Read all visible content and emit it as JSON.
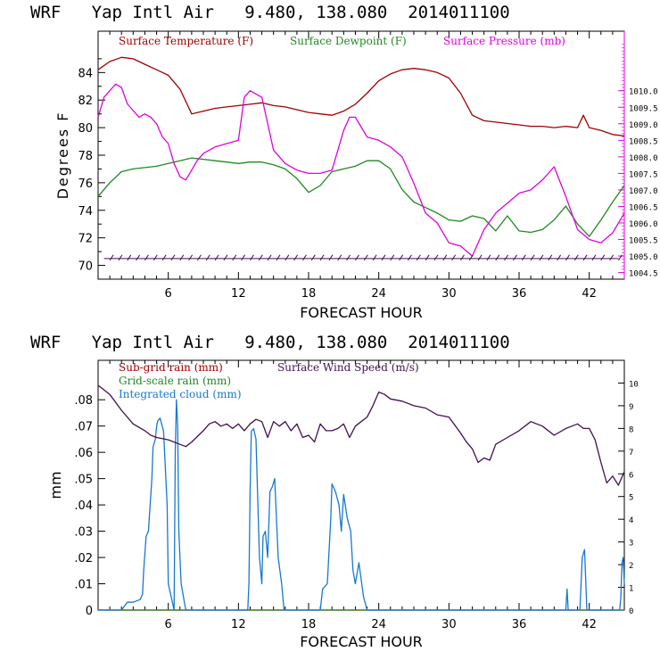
{
  "colors": {
    "temperature": "#a00000",
    "dewpoint": "#208820",
    "pressure": "#e000e0",
    "wind_barb": "#401050",
    "subgrid": "#a00000",
    "gridscale": "#208820",
    "cloud": "#1878d0",
    "windspeed": "#401050"
  },
  "chart_data": [
    {
      "type": "line",
      "title": "WRF   Yap Intl Air   9.480, 138.080  2014011100",
      "xlabel": "FORECAST HOUR",
      "ylabel": "Degrees F",
      "xlim": [
        0,
        45
      ],
      "ylim": [
        69,
        87
      ],
      "xticks": [
        6,
        12,
        18,
        24,
        30,
        36,
        42
      ],
      "yticks": [
        70,
        72,
        74,
        76,
        78,
        80,
        82,
        84
      ],
      "y2lim": [
        1004.3,
        1011.8
      ],
      "y2ticks": [
        "1004.5",
        "1005.0",
        "1005.5",
        "1006.0",
        "1006.5",
        "1007.0",
        "1007.5",
        "1008.0",
        "1008.5",
        "1009.0",
        "1009.5",
        "1010.0"
      ],
      "legend": [
        "Surface Temperature (F)",
        "Surface Dewpoint (F)",
        "Surface Pressure (mb)"
      ],
      "grid": false,
      "series": [
        {
          "name": "Surface Temperature (F)",
          "axis": "left",
          "x": [
            0,
            1,
            2,
            3,
            4,
            5,
            6,
            7,
            8,
            9,
            10,
            11,
            12,
            13,
            14,
            15,
            16,
            17,
            18,
            19,
            20,
            21,
            22,
            23,
            24,
            25,
            26,
            27,
            28,
            29,
            30,
            31,
            32,
            33,
            34,
            35,
            36,
            37,
            38,
            39,
            40,
            41,
            41.5,
            42,
            43,
            44,
            45
          ],
          "y": [
            84.2,
            84.8,
            85.1,
            85.0,
            84.6,
            84.2,
            83.8,
            82.8,
            81.0,
            81.2,
            81.4,
            81.5,
            81.6,
            81.7,
            81.8,
            81.6,
            81.5,
            81.3,
            81.1,
            81.0,
            80.9,
            81.2,
            81.7,
            82.5,
            83.4,
            83.9,
            84.2,
            84.3,
            84.2,
            84.0,
            83.6,
            82.5,
            80.9,
            80.5,
            80.4,
            80.3,
            80.2,
            80.1,
            80.1,
            80.0,
            80.1,
            80.0,
            80.9,
            80.0,
            79.8,
            79.5,
            79.4
          ]
        },
        {
          "name": "Surface Dewpoint (F)",
          "axis": "left",
          "x": [
            0,
            1,
            2,
            3,
            4,
            5,
            6,
            7,
            8,
            9,
            10,
            11,
            12,
            13,
            14,
            15,
            16,
            17,
            18,
            19,
            20,
            21,
            22,
            23,
            24,
            25,
            26,
            27,
            28,
            29,
            30,
            31,
            32,
            33,
            34,
            35,
            36,
            37,
            38,
            39,
            40,
            41,
            42,
            43,
            44,
            45
          ],
          "y": [
            75.0,
            76.0,
            76.8,
            77.0,
            77.1,
            77.2,
            77.4,
            77.6,
            77.8,
            77.7,
            77.6,
            77.5,
            77.4,
            77.5,
            77.5,
            77.3,
            77.0,
            76.3,
            75.3,
            75.8,
            76.8,
            77.0,
            77.2,
            77.6,
            77.6,
            77.0,
            75.5,
            74.6,
            74.2,
            73.8,
            73.3,
            73.2,
            73.6,
            73.4,
            72.5,
            73.6,
            72.5,
            72.4,
            72.6,
            73.3,
            74.3,
            73.0,
            72.1,
            73.3,
            74.6,
            75.8
          ]
        },
        {
          "name": "Surface Pressure (mb)",
          "axis": "right",
          "x": [
            0,
            0.5,
            1,
            1.5,
            2,
            2.5,
            3,
            3.5,
            4,
            4.5,
            5,
            5.5,
            6,
            6.5,
            7,
            7.5,
            8,
            8.5,
            9,
            10,
            11,
            12,
            12.5,
            13,
            13.5,
            14,
            15,
            16,
            17,
            18,
            19,
            20,
            20.5,
            21,
            21.5,
            22,
            22.5,
            23,
            24,
            25,
            26,
            27,
            28,
            29,
            30,
            31,
            32,
            33,
            34,
            35,
            36,
            37,
            38,
            39,
            40,
            41,
            42,
            43,
            44,
            45
          ],
          "y": [
            1009.2,
            1009.8,
            1010.0,
            1010.2,
            1010.1,
            1009.6,
            1009.4,
            1009.2,
            1009.3,
            1009.2,
            1009.0,
            1008.6,
            1008.4,
            1007.8,
            1007.4,
            1007.3,
            1007.6,
            1007.9,
            1008.1,
            1008.3,
            1008.4,
            1008.5,
            1009.8,
            1010.0,
            1009.9,
            1009.8,
            1008.2,
            1007.8,
            1007.6,
            1007.5,
            1007.5,
            1007.6,
            1008.2,
            1008.8,
            1009.2,
            1009.2,
            1008.9,
            1008.6,
            1008.5,
            1008.3,
            1008.0,
            1007.2,
            1006.3,
            1006.0,
            1005.4,
            1005.3,
            1005.0,
            1005.8,
            1006.3,
            1006.6,
            1006.9,
            1007.0,
            1007.3,
            1007.7,
            1006.8,
            1005.8,
            1005.5,
            1005.4,
            1005.7,
            1006.3
          ]
        }
      ],
      "wind_barb_level": 70.5
    },
    {
      "type": "line",
      "title": "WRF   Yap Intl Air   9.480, 138.080  2014011100",
      "xlabel": "FORECAST HOUR",
      "ylabel": "mm",
      "xlim": [
        0,
        45
      ],
      "ylim": [
        0,
        0.095
      ],
      "xticks": [
        6,
        12,
        18,
        24,
        30,
        36,
        42
      ],
      "yticks": [
        0,
        0.01,
        0.02,
        0.03,
        0.04,
        0.05,
        0.06,
        0.07,
        0.08
      ],
      "ytick_labels": [
        "0",
        ".01",
        ".02",
        ".03",
        ".04",
        ".05",
        ".06",
        ".07",
        ".08"
      ],
      "y2lim": [
        0,
        11.0
      ],
      "y2ticks": [
        "0",
        "1",
        "2",
        "3",
        "4",
        "5",
        "6",
        "7",
        "8",
        "9",
        "10"
      ],
      "legend": [
        "Sub-grid rain (mm)",
        "Grid-scale rain (mm)",
        "Integrated cloud (mm)",
        "Surface Wind Speed (m/s)"
      ],
      "grid": false,
      "series": [
        {
          "name": "Sub-grid rain (mm)",
          "axis": "left",
          "x": [
            0,
            45
          ],
          "y": [
            0,
            0
          ]
        },
        {
          "name": "Grid-scale rain (mm)",
          "axis": "left",
          "x": [
            0,
            45
          ],
          "y": [
            0,
            0
          ]
        },
        {
          "name": "Integrated cloud (mm)",
          "axis": "left",
          "x": [
            0,
            2,
            2.5,
            3,
            3.6,
            3.8,
            3.9,
            4.1,
            4.3,
            4.6,
            4.7,
            4.9,
            5.0,
            5.1,
            5.3,
            5.6,
            5.9,
            6.0,
            6.5,
            6.6,
            6.7,
            6.8,
            6.9,
            7.1,
            7.5,
            9,
            12,
            12.8,
            12.9,
            13.0,
            13.1,
            13.3,
            13.5,
            13.8,
            14.0,
            14.1,
            14.3,
            14.5,
            14.7,
            14.9,
            15.1,
            15.4,
            15.7,
            15.9,
            16.1,
            16.3,
            16.5,
            18.5,
            19.0,
            19.2,
            19.6,
            19.9,
            20.0,
            20.3,
            20.6,
            20.8,
            21.0,
            21.3,
            21.6,
            21.8,
            22.0,
            22.3,
            22.7,
            23,
            30,
            39.9,
            40.0,
            40.1,
            40.2,
            41.2,
            41.4,
            41.6,
            41.8,
            44.6,
            44.7,
            44.8,
            44.9,
            45
          ],
          "y": [
            0,
            0,
            0.003,
            0.003,
            0.004,
            0.006,
            0.015,
            0.028,
            0.03,
            0.05,
            0.062,
            0.065,
            0.07,
            0.072,
            0.073,
            0.068,
            0.04,
            0.01,
            0,
            0.06,
            0.08,
            0.07,
            0.03,
            0.01,
            0,
            0,
            0,
            0,
            0.01,
            0.045,
            0.068,
            0.069,
            0.065,
            0.02,
            0.01,
            0.028,
            0.03,
            0.02,
            0.045,
            0.047,
            0.05,
            0.02,
            0.01,
            0,
            0,
            0,
            0,
            0,
            0,
            0.008,
            0.01,
            0.035,
            0.048,
            0.045,
            0.04,
            0.03,
            0.044,
            0.035,
            0.03,
            0.015,
            0.01,
            0.018,
            0.005,
            0,
            0,
            0,
            0,
            0.008,
            0,
            0,
            0.02,
            0.023,
            0,
            0,
            0.005,
            0.018,
            0.02,
            0.01
          ]
        },
        {
          "name": "Surface Wind Speed (m/s)",
          "axis": "right",
          "x": [
            0,
            0.5,
            1,
            2,
            3,
            4,
            4.5,
            5,
            6,
            7,
            7.5,
            8,
            9,
            9.5,
            10,
            10.5,
            11,
            11.5,
            12,
            12.5,
            13,
            13.5,
            14,
            14.5,
            15,
            15.5,
            16,
            16.5,
            17,
            17.5,
            18,
            18.5,
            19,
            19.5,
            20,
            20.5,
            21,
            21.5,
            22,
            22.5,
            23,
            23.5,
            24,
            24.5,
            25,
            26,
            27,
            28,
            29,
            30,
            31,
            31.5,
            32,
            32.5,
            33,
            33.5,
            34,
            35,
            36,
            37,
            38,
            39,
            40,
            41,
            41.5,
            42,
            42.5,
            43,
            43.5,
            44,
            44.5,
            45
          ],
          "y": [
            9.9,
            9.7,
            9.5,
            8.8,
            8.2,
            7.9,
            7.7,
            7.6,
            7.5,
            7.3,
            7.2,
            7.4,
            7.9,
            8.2,
            8.3,
            8.1,
            8.2,
            8.0,
            8.2,
            7.9,
            8.2,
            8.4,
            8.3,
            7.6,
            8.3,
            8.1,
            8.3,
            7.9,
            8.2,
            7.6,
            7.7,
            7.4,
            8.2,
            7.9,
            7.9,
            8.0,
            8.2,
            7.6,
            8.1,
            8.3,
            8.5,
            9.0,
            9.6,
            9.5,
            9.3,
            9.2,
            9.0,
            8.9,
            8.6,
            8.5,
            7.8,
            7.4,
            7.1,
            6.5,
            6.7,
            6.6,
            7.3,
            7.6,
            7.9,
            8.3,
            8.1,
            7.7,
            8.0,
            8.2,
            8.0,
            8.0,
            7.5,
            6.5,
            5.6,
            5.9,
            5.5,
            6.1
          ]
        }
      ]
    }
  ]
}
